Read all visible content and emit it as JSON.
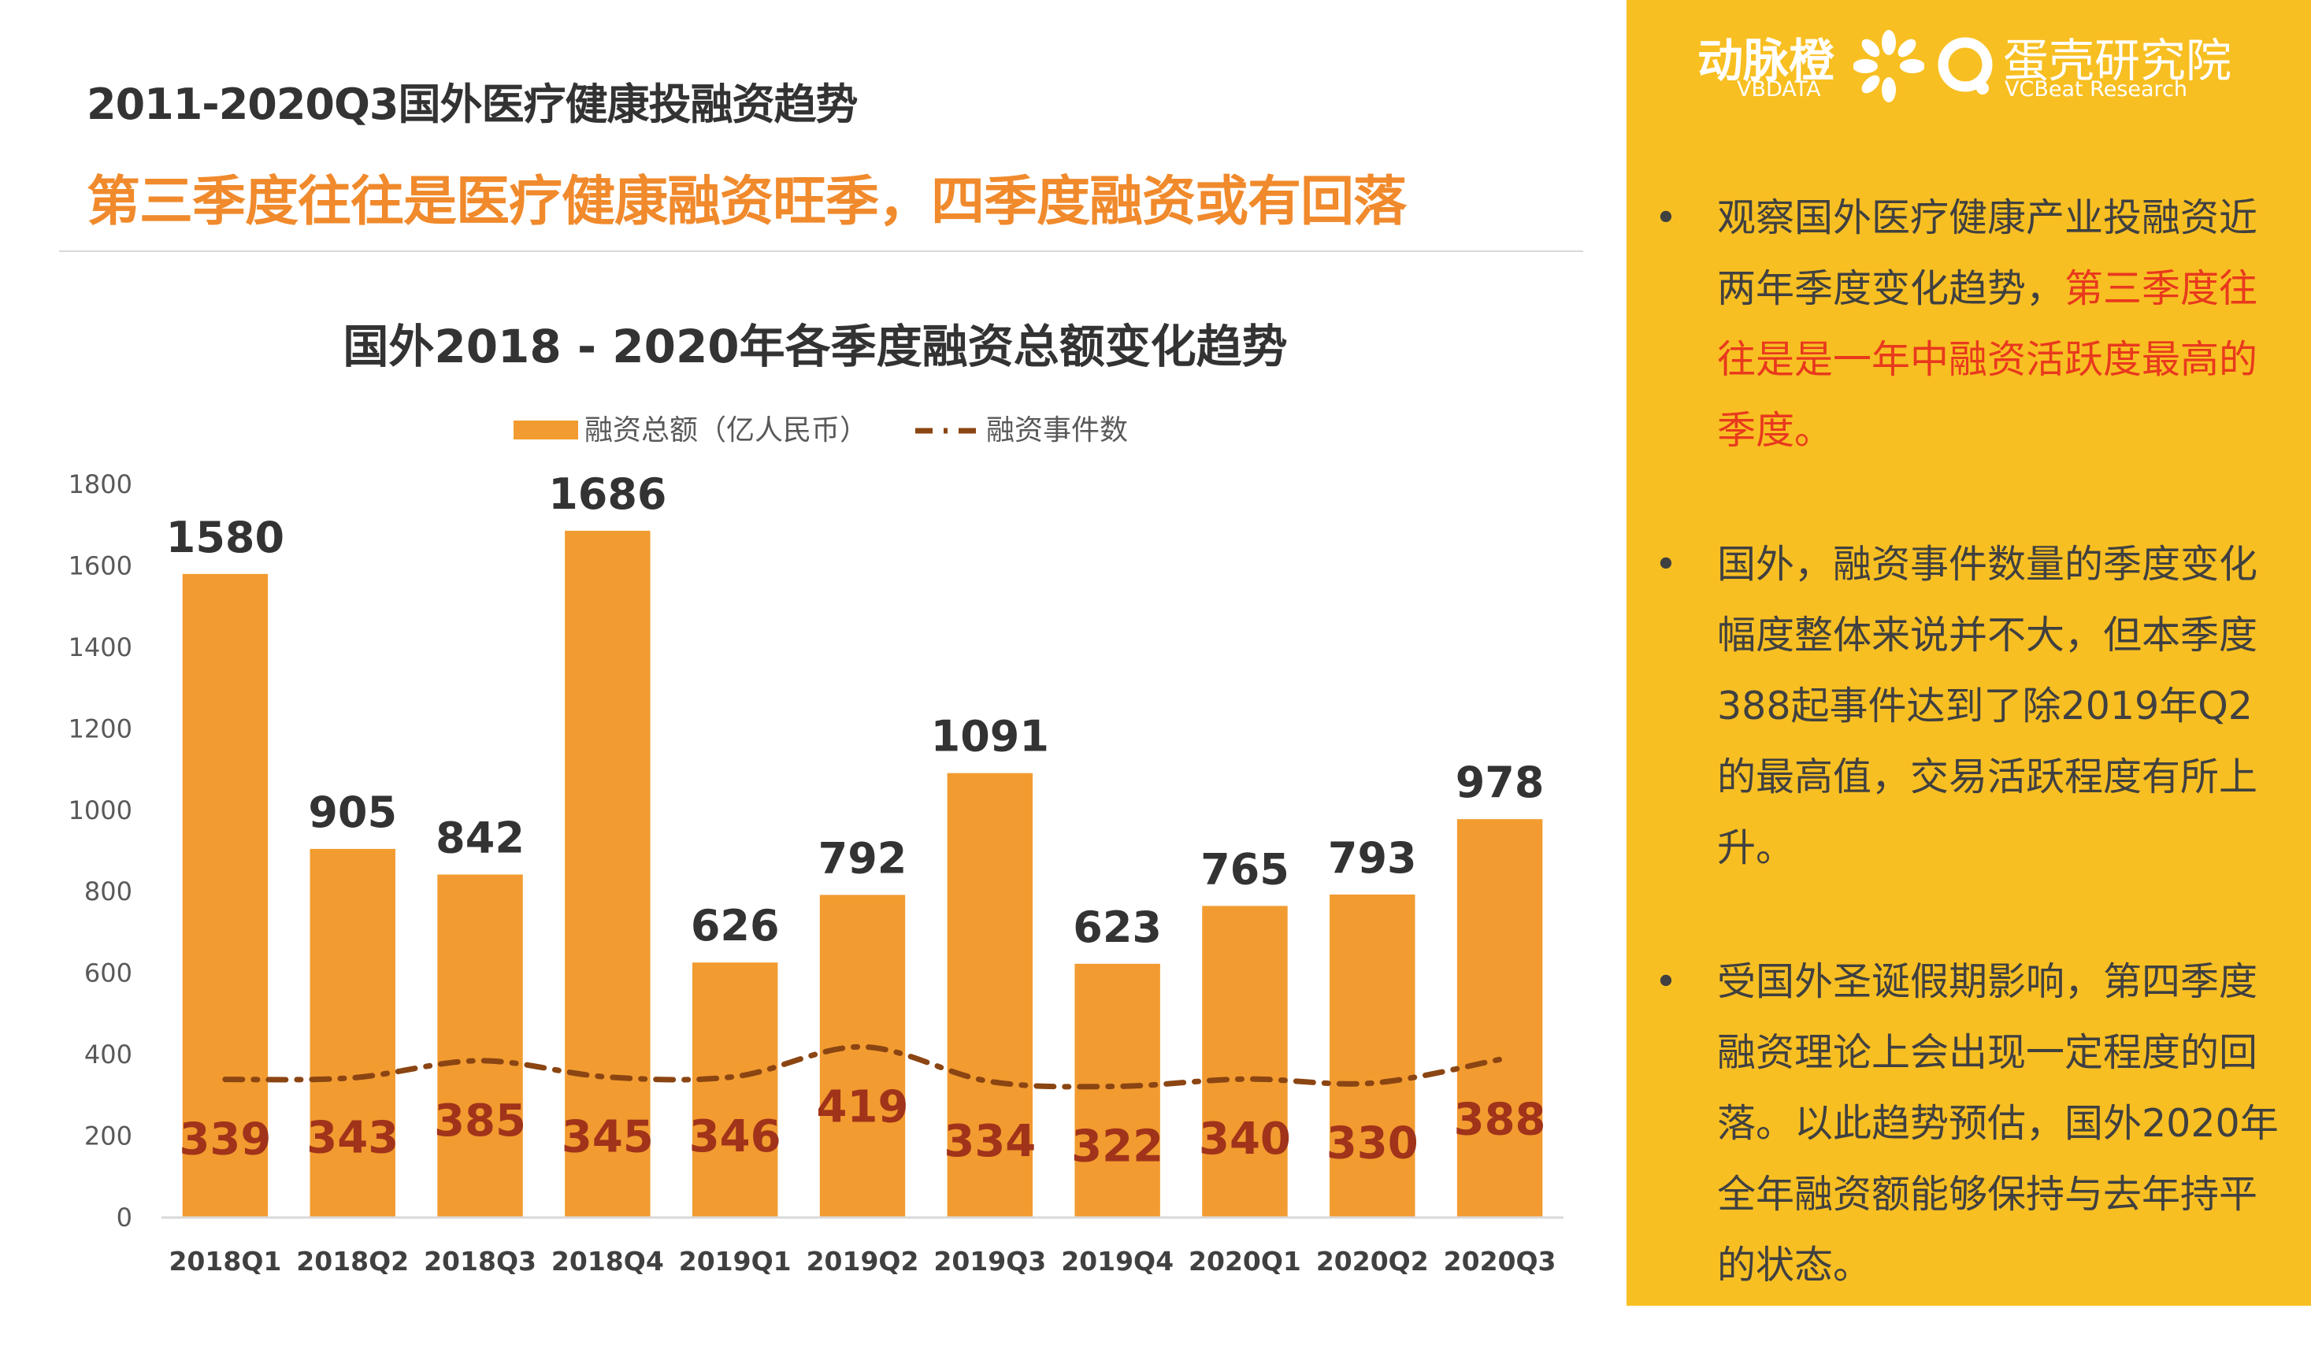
{
  "header": {
    "title": "2011-2020Q3国外医疗健康投融资趋势",
    "subtitle": "第三季度往往是医疗健康融资旺季，四季度融资或有回落"
  },
  "colors": {
    "bar": "#f29b30",
    "line": "#8b4513",
    "subtitle": "#f08a2c",
    "panel": "#f8bf22",
    "highlight": "#e8391d"
  },
  "chart_data": {
    "type": "bar",
    "title": "国外2018 - 2020年各季度融资总额变化趋势",
    "categories": [
      "2018Q1",
      "2018Q2",
      "2018Q3",
      "2018Q4",
      "2019Q1",
      "2019Q2",
      "2019Q3",
      "2019Q4",
      "2020Q1",
      "2020Q2",
      "2020Q3"
    ],
    "series": [
      {
        "name": "融资总额（亿人民币）",
        "type": "bar",
        "values": [
          1580,
          905,
          842,
          1686,
          626,
          792,
          1091,
          623,
          765,
          793,
          978
        ]
      },
      {
        "name": "融资事件数",
        "type": "line",
        "values": [
          339,
          343,
          385,
          345,
          346,
          419,
          334,
          322,
          340,
          330,
          388
        ]
      }
    ],
    "ylim": [
      0,
      1800
    ],
    "yticks": [
      0,
      200,
      400,
      600,
      800,
      1000,
      1200,
      1400,
      1600,
      1800
    ],
    "legend": "top-center",
    "grid": false
  },
  "logos": {
    "vbdata_cn": "动脉橙",
    "vbdata_en": "VBDATA",
    "vcbeat_cn": "蛋壳研究院",
    "vcbeat_en": "VCBeat Research"
  },
  "bullets": [
    {
      "marker": "•",
      "parts": [
        {
          "text": "观察国外医疗健康产业投融资近两年季度变化趋势，",
          "highlight": false
        },
        {
          "text": "第三季度往往是是一年中融资活跃度最高的季度。",
          "highlight": true
        }
      ]
    },
    {
      "marker": "•",
      "parts": [
        {
          "text": "国外，融资事件数量的季度变化幅度整体来说并不大，但本季度388起事件达到了除2019年Q2的最高值，交易活跃程度有所上升。",
          "highlight": false
        }
      ]
    },
    {
      "marker": "•",
      "parts": [
        {
          "text": "受国外圣诞假期影响，第四季度融资理论上会出现一定程度的回落。以此趋势预估，国外2020年全年融资额能够保持与去年持平的状态。",
          "highlight": false
        }
      ]
    }
  ]
}
